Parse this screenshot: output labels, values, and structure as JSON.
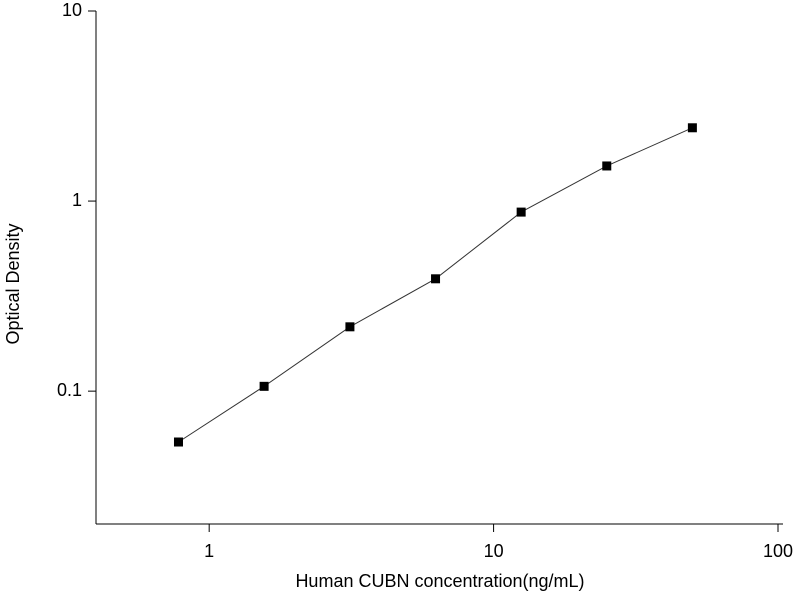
{
  "chart_data": {
    "type": "scatter",
    "x_label": "Human CUBN concentration(ng/mL)",
    "y_label": "Optical Density",
    "x": [
      0.78,
      1.56,
      3.125,
      6.25,
      12.5,
      25,
      50
    ],
    "values": [
      0.054,
      0.106,
      0.218,
      0.39,
      0.875,
      1.53,
      2.43
    ],
    "color": "#000000",
    "xlim": [
      0.4,
      100
    ],
    "xticks": [
      1,
      10,
      100
    ],
    "ylim": [
      0.02,
      10
    ],
    "yticks": [
      0.1,
      1,
      10
    ],
    "log_x": true,
    "log_y": true,
    "fit_line": true
  }
}
